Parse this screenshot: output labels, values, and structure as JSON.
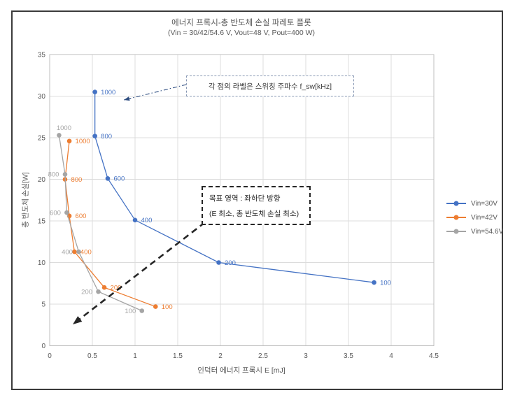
{
  "window": {
    "background": "#ffffff",
    "frame_border_color": "#3b3b3b"
  },
  "chart_data": {
    "type": "scatter",
    "title": "에너지 프록시-총 반도체 손실 파레토 플롯",
    "subtitle": "(Vin = 30/42/54.6 V, Vout=48 V, Pout=400 W)",
    "xlabel": "인덕터 에너지 프록시 E [mJ]",
    "ylabel": "총 반도체 손실[W]",
    "xlim": [
      0,
      4.5
    ],
    "ylim": [
      0,
      35
    ],
    "xtick_step": 0.5,
    "ytick_step": 5,
    "grid": true,
    "legend_position": "right",
    "point_label_meaning": "f_sw [kHz]",
    "series": [
      {
        "name": "Vin=30V",
        "color": "#4472C4",
        "label_side": "right",
        "points": [
          {
            "f": "1000",
            "x": 0.53,
            "y": 30.5
          },
          {
            "f": "800",
            "x": 0.53,
            "y": 25.2
          },
          {
            "f": "600",
            "x": 0.68,
            "y": 20.1
          },
          {
            "f": "400",
            "x": 1.0,
            "y": 15.1
          },
          {
            "f": "200",
            "x": 1.98,
            "y": 10.0
          },
          {
            "f": "100",
            "x": 3.8,
            "y": 7.6
          }
        ]
      },
      {
        "name": "Vin=42V",
        "color": "#ED7D31",
        "label_side": "right",
        "points": [
          {
            "f": "1000",
            "x": 0.23,
            "y": 24.6
          },
          {
            "f": "800",
            "x": 0.18,
            "y": 20.0
          },
          {
            "f": "600",
            "x": 0.23,
            "y": 15.6
          },
          {
            "f": "400",
            "x": 0.29,
            "y": 11.3
          },
          {
            "f": "200",
            "x": 0.64,
            "y": 7.0
          },
          {
            "f": "100",
            "x": 1.24,
            "y": 4.7
          }
        ]
      },
      {
        "name": "Vin=54.6V",
        "color": "#A5A5A5",
        "label_side": "left",
        "points": [
          {
            "f": "1000",
            "x": 0.11,
            "y": 25.3,
            "label_pos": "above"
          },
          {
            "f": "800",
            "x": 0.18,
            "y": 20.6
          },
          {
            "f": "600",
            "x": 0.2,
            "y": 16.0
          },
          {
            "f": "400",
            "x": 0.34,
            "y": 11.3
          },
          {
            "f": "200",
            "x": 0.57,
            "y": 6.5
          },
          {
            "f": "100",
            "x": 1.08,
            "y": 4.2
          }
        ]
      }
    ],
    "annotations": {
      "callout_label_text": "각 점의 라벨은 스위칭 주파수 f_sw[kHz]",
      "target_region_line1": "목표 영역 : 좌하단 방향",
      "target_region_line2": "(E 최소, 총 반도체 손실 최소)"
    }
  },
  "colors": {
    "gridline": "#DCDCDC",
    "plot_border": "#BFBFBF",
    "tick_text": "#595959",
    "title_text": "#595959",
    "black_arrow": "#262626",
    "callout_arrow": "#2e4d80"
  }
}
